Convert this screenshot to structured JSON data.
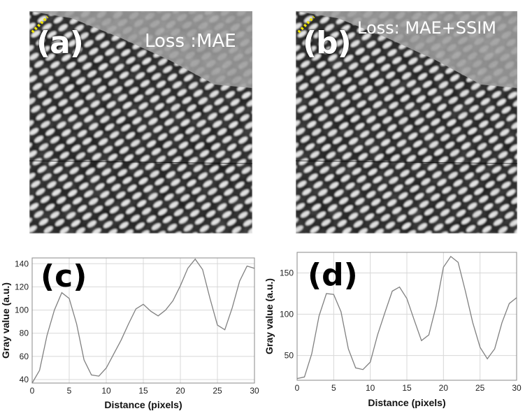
{
  "panels": [
    {
      "letter": "(a)",
      "loss": "Loss :MAE"
    },
    {
      "letter": "(b)",
      "loss": "Loss: MAE+SSIM"
    }
  ],
  "colors": {
    "marker": "#f2e600",
    "line": "#808080",
    "grid": "#d8d8d8"
  },
  "chart_data": [
    {
      "type": "line",
      "panel": "(c)",
      "xlabel": "Distance (pixels)",
      "ylabel": "Gray value (a.u.)",
      "xlim": [
        0,
        30
      ],
      "ylim": [
        37,
        145
      ],
      "xticks": [
        0,
        5,
        10,
        15,
        20,
        25,
        30
      ],
      "yticks": [
        40,
        60,
        80,
        100,
        120,
        140
      ],
      "grid": true,
      "x": [
        0,
        1,
        2,
        3,
        4,
        5,
        6,
        7,
        8,
        9,
        10,
        11,
        12,
        13,
        14,
        15,
        16,
        17,
        18,
        19,
        20,
        21,
        22,
        23,
        24,
        25,
        26,
        27,
        28,
        29,
        30
      ],
      "series": [
        {
          "values": [
            37,
            48,
            78,
            100,
            115,
            110,
            88,
            57,
            44,
            43,
            50,
            62,
            74,
            88,
            101,
            105,
            99,
            95,
            100,
            108,
            121,
            136,
            144,
            135,
            110,
            87,
            83,
            102,
            125,
            138,
            136
          ]
        }
      ]
    },
    {
      "type": "line",
      "panel": "(d)",
      "xlabel": "Distance (pixels)",
      "ylabel": "Gray value (a.u.)",
      "xlim": [
        0,
        30
      ],
      "ylim": [
        20,
        175
      ],
      "xticks": [
        0,
        5,
        10,
        15,
        20,
        25,
        30
      ],
      "yticks": [
        50,
        100,
        150
      ],
      "grid": true,
      "x": [
        0,
        1,
        2,
        3,
        4,
        5,
        6,
        7,
        8,
        9,
        10,
        11,
        12,
        13,
        14,
        15,
        16,
        17,
        18,
        19,
        20,
        21,
        22,
        23,
        24,
        25,
        26,
        27,
        28,
        29,
        30
      ],
      "series": [
        {
          "values": [
            22,
            24,
            52,
            98,
            125,
            124,
            103,
            58,
            35,
            33,
            42,
            75,
            102,
            128,
            133,
            119,
            93,
            68,
            75,
            110,
            157,
            170,
            163,
            128,
            90,
            60,
            46,
            58,
            90,
            113,
            120
          ]
        }
      ]
    }
  ]
}
